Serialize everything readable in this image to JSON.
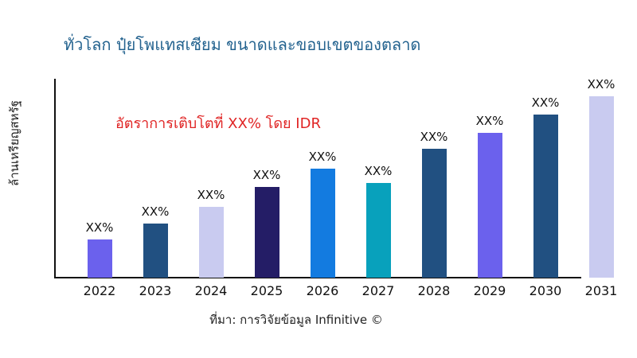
{
  "colors": {
    "title": "#24638f",
    "annotation": "#e02424",
    "axis": "#111111",
    "bar_label": "#111111"
  },
  "chart_data": {
    "type": "bar",
    "title": "ทั่วโลก ปุ๋ยโพแทสเซียม ขนาดและขอบเขตของตลาด",
    "ylabel": "ล้านเหรียญสหรัฐ",
    "xlabel": "",
    "annotation": "อัตราการเติบโตที่ XX% โดย IDR",
    "source": "ที่มา: การวิจัยข้อมูล Infinitive ©",
    "categories": [
      "2022",
      "2023",
      "2024",
      "2025",
      "2026",
      "2027",
      "2028",
      "2029",
      "2030",
      "2031"
    ],
    "values": [
      21,
      30,
      39,
      50,
      60,
      52,
      71,
      80,
      90,
      100
    ],
    "value_labels": [
      "XX%",
      "XX%",
      "XX%",
      "XX%",
      "XX%",
      "XX%",
      "XX%",
      "XX%",
      "XX%",
      "XX%"
    ],
    "bar_colors": [
      "#6b61ed",
      "#215081",
      "#c9cbf0",
      "#241d66",
      "#137be0",
      "#08a1bc",
      "#215081",
      "#6b61ed",
      "#215081",
      "#c9cbf0"
    ],
    "ylim": [
      0,
      100
    ],
    "grid": false,
    "legend": false,
    "y_ticks_visible": false
  }
}
